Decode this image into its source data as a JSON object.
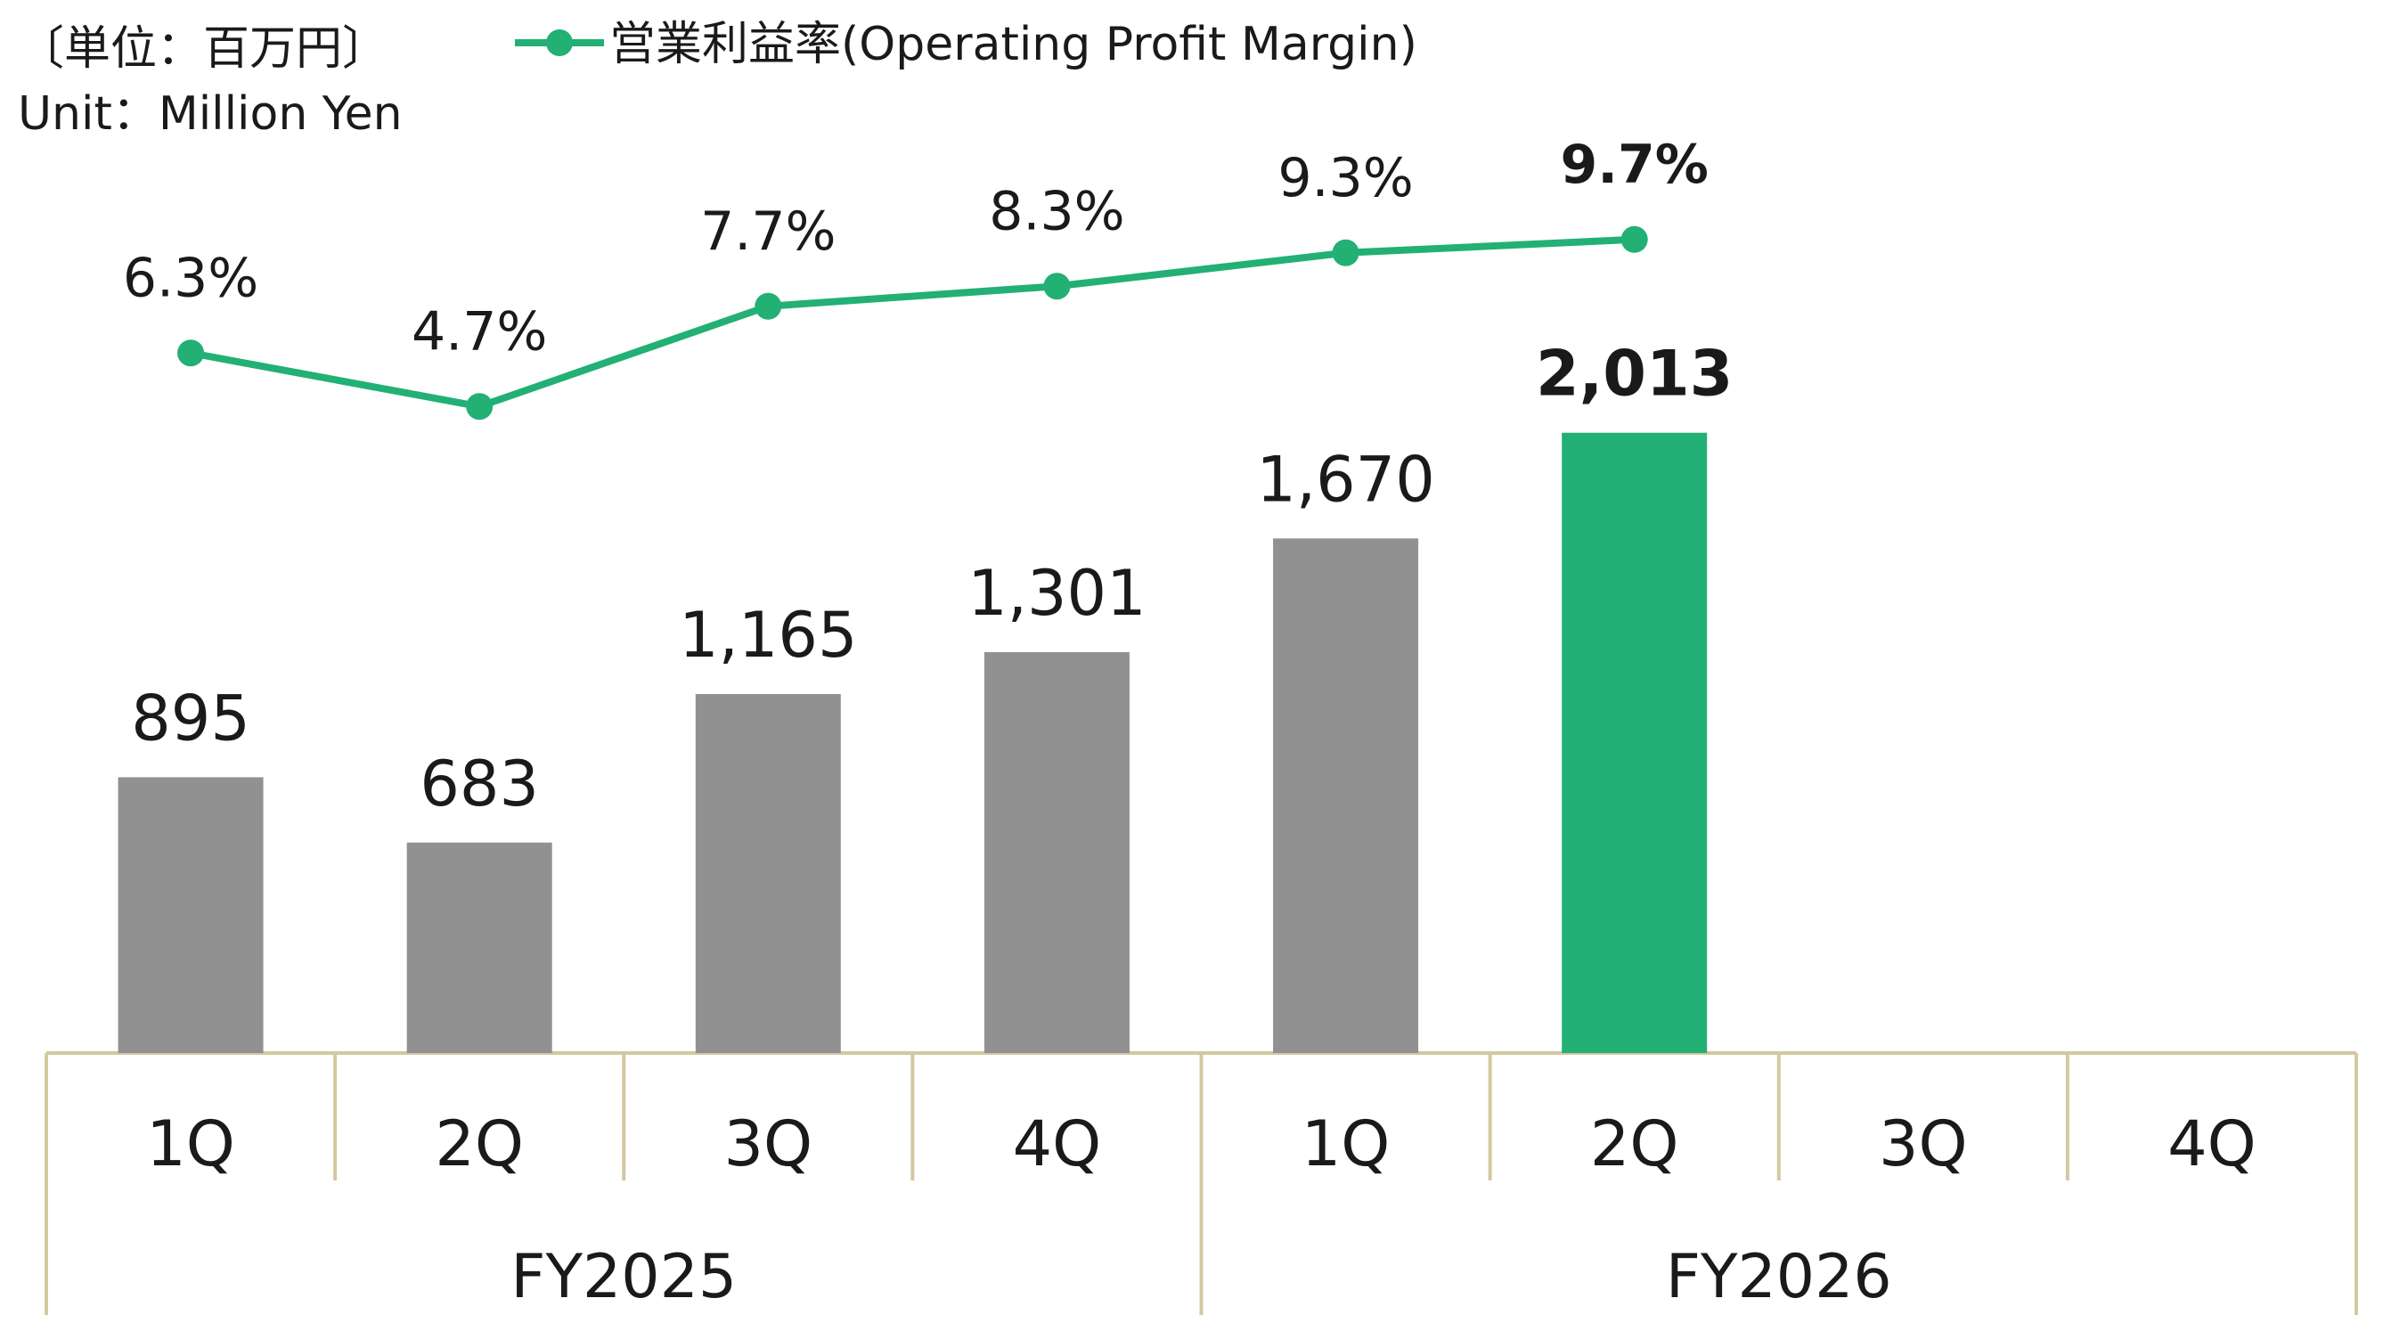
{
  "header": {
    "unit_jp": "〔単位：百万円〕",
    "unit_en": "Unit：Million Yen",
    "legend_label": "営業利益率(Operating Profit Margin)"
  },
  "colors": {
    "bar_default": "#919191",
    "bar_highlight": "#22b074",
    "line": "#22b074",
    "axis": "#d3c8a0",
    "text": "#1a1a1a"
  },
  "chart_data": {
    "type": "bar",
    "categories": [
      "1Q",
      "2Q",
      "3Q",
      "4Q",
      "1Q",
      "2Q",
      "3Q",
      "4Q"
    ],
    "groups": [
      {
        "label": "FY2025",
        "span": [
          0,
          3
        ]
      },
      {
        "label": "FY2026",
        "span": [
          4,
          7
        ]
      }
    ],
    "series": [
      {
        "type": "bar",
        "values": [
          895,
          683,
          1165,
          1301,
          1670,
          2013,
          null,
          null
        ],
        "labels": [
          "895",
          "683",
          "1,165",
          "1,301",
          "1,670",
          "2,013",
          "",
          ""
        ],
        "highlight_index": 5
      },
      {
        "name": "営業利益率(Operating Profit Margin)",
        "type": "line",
        "values": [
          6.3,
          4.7,
          7.7,
          8.3,
          9.3,
          9.7,
          null,
          null
        ],
        "labels": [
          "6.3%",
          "4.7%",
          "7.7%",
          "8.3%",
          "9.3%",
          "9.7%",
          "",
          ""
        ],
        "highlight_index": 5
      }
    ],
    "ylim": [
      0,
      2550
    ],
    "y2lim": [
      -5,
      15
    ],
    "grid": false,
    "legend_position": "top-center"
  }
}
